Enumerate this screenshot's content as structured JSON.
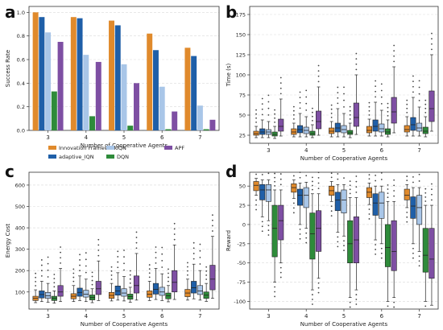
{
  "colors": {
    "Innovation Framework": "#e08a2c",
    "adaptive_IQN": "#1f5fa8",
    "IQN": "#a9c6e8",
    "DQN": "#2e8b3a",
    "APF": "#7e4fa3"
  },
  "chart_data": [
    {
      "panel": "a",
      "type": "bar",
      "xlabel": "Number of Cooperative Agents",
      "ylabel": "Success Rate",
      "ylim": [
        0,
        1.05
      ],
      "yticks": [
        "0.0",
        "0.2",
        "0.4",
        "0.6",
        "0.8",
        "1.0"
      ],
      "categories": [
        "3",
        "4",
        "5",
        "6",
        "7"
      ],
      "grid": true,
      "legend": "bottom",
      "series": [
        {
          "name": "Innovation Framework",
          "values": [
            1.0,
            0.96,
            0.93,
            0.82,
            0.7
          ]
        },
        {
          "name": "adaptive_IQN",
          "values": [
            0.96,
            0.95,
            0.89,
            0.68,
            0.63
          ]
        },
        {
          "name": "IQN",
          "values": [
            0.83,
            0.64,
            0.56,
            0.37,
            0.21
          ]
        },
        {
          "name": "DQN",
          "values": [
            0.33,
            0.12,
            0.04,
            0.01,
            0.01
          ]
        },
        {
          "name": "APF",
          "values": [
            0.75,
            0.58,
            0.4,
            0.16,
            0.09
          ]
        }
      ]
    },
    {
      "panel": "b",
      "type": "boxplot",
      "xlabel": "Number of Cooperative Agents",
      "ylabel": "Time (s)",
      "ylim": [
        15,
        185
      ],
      "yticks": [
        "25",
        "50",
        "75",
        "100",
        "125",
        "150",
        "175"
      ],
      "categories": [
        "3",
        "4",
        "5",
        "6",
        "7"
      ],
      "grid": true,
      "series": [
        {
          "name": "Innovation Framework",
          "boxes": [
            [
              22,
              25,
              27,
              30,
              36
            ],
            [
              23,
              26,
              29,
              33,
              40
            ],
            [
              23,
              27,
              30,
              34,
              42
            ],
            [
              24,
              28,
              31,
              36,
              45
            ],
            [
              24,
              29,
              32,
              37,
              48
            ]
          ]
        },
        {
          "name": "adaptive_IQN",
          "boxes": [
            [
              22,
              26,
              29,
              33,
              44
            ],
            [
              23,
              28,
              32,
              37,
              52
            ],
            [
              23,
              29,
              34,
              40,
              58
            ],
            [
              24,
              30,
              36,
              44,
              66
            ],
            [
              24,
              31,
              38,
              47,
              72
            ]
          ]
        },
        {
          "name": "IQN",
          "boxes": [
            [
              22,
              26,
              29,
              32,
              42
            ],
            [
              23,
              27,
              31,
              35,
              48
            ],
            [
              23,
              28,
              32,
              37,
              52
            ],
            [
              24,
              29,
              33,
              39,
              56
            ],
            [
              24,
              30,
              34,
              40,
              60
            ]
          ]
        },
        {
          "name": "DQN",
          "boxes": [
            [
              21,
              24,
              26,
              29,
              36
            ],
            [
              22,
              25,
              27,
              30,
              38
            ],
            [
              22,
              26,
              28,
              31,
              40
            ],
            [
              23,
              26,
              29,
              33,
              44
            ],
            [
              23,
              27,
              30,
              35,
              48
            ]
          ]
        },
        {
          "name": "APF",
          "boxes": [
            [
              24,
              30,
              36,
              45,
              70
            ],
            [
              25,
              33,
              42,
              55,
              85
            ],
            [
              26,
              36,
              47,
              65,
              100
            ],
            [
              28,
              40,
              54,
              72,
              110
            ],
            [
              30,
              42,
              58,
              80,
              125
            ]
          ]
        }
      ]
    },
    {
      "panel": "c",
      "type": "boxplot",
      "xlabel": "Number of Cooperative Agents",
      "ylabel": "Energy Cost",
      "ylim": [
        20,
        660
      ],
      "yticks": [
        "100",
        "200",
        "300",
        "400",
        "500",
        "600"
      ],
      "categories": [
        "3",
        "4",
        "5",
        "6",
        "7"
      ],
      "grid": true,
      "series": [
        {
          "name": "Innovation Framework",
          "boxes": [
            [
              50,
              60,
              70,
              80,
              110
            ],
            [
              55,
              68,
              80,
              92,
              130
            ],
            [
              58,
              70,
              84,
              98,
              140
            ],
            [
              60,
              75,
              90,
              105,
              150
            ],
            [
              62,
              78,
              95,
              112,
              160
            ]
          ]
        },
        {
          "name": "adaptive_IQN",
          "boxes": [
            [
              55,
              72,
              88,
              105,
              150
            ],
            [
              60,
              80,
              98,
              118,
              175
            ],
            [
              62,
              85,
              105,
              128,
              190
            ],
            [
              65,
              90,
              112,
              140,
              210
            ],
            [
              68,
              95,
              120,
              150,
              230
            ]
          ]
        },
        {
          "name": "IQN",
          "boxes": [
            [
              52,
              70,
              82,
              98,
              140
            ],
            [
              55,
              76,
              90,
              108,
              160
            ],
            [
              58,
              80,
              95,
              115,
              172
            ],
            [
              60,
              84,
              100,
              122,
              185
            ],
            [
              62,
              88,
              105,
              130,
              200
            ]
          ]
        },
        {
          "name": "DQN",
          "boxes": [
            [
              48,
              60,
              70,
              80,
              105
            ],
            [
              50,
              63,
              74,
              86,
              115
            ],
            [
              52,
              66,
              78,
              90,
              122
            ],
            [
              54,
              68,
              82,
              95,
              130
            ],
            [
              56,
              70,
              85,
              100,
              140
            ]
          ]
        },
        {
          "name": "APF",
          "boxes": [
            [
              55,
              80,
              100,
              130,
              210
            ],
            [
              60,
              88,
              115,
              150,
              245
            ],
            [
              62,
              95,
              130,
              175,
              280
            ],
            [
              65,
              100,
              145,
              200,
              320
            ],
            [
              70,
              110,
              160,
              225,
              360
            ]
          ]
        }
      ]
    },
    {
      "panel": "d",
      "type": "boxplot",
      "xlabel": "Number of Cooperative Agents",
      "ylabel": "Reward",
      "ylim": [
        -110,
        68
      ],
      "yticks": [
        "-100",
        "-75",
        "-50",
        "-25",
        "0",
        "25",
        "50"
      ],
      "categories": [
        "3",
        "4",
        "5",
        "6",
        "7"
      ],
      "grid": true,
      "series": [
        {
          "name": "Innovation Framework",
          "boxes": [
            [
              38,
              44,
              51,
              56,
              60
            ],
            [
              34,
              42,
              48,
              53,
              58
            ],
            [
              30,
              38,
              44,
              50,
              56
            ],
            [
              26,
              35,
              42,
              48,
              54
            ],
            [
              22,
              32,
              38,
              46,
              52
            ]
          ]
        },
        {
          "name": "adaptive_IQN",
          "boxes": [
            [
              10,
              32,
              45,
              52,
              58
            ],
            [
              0,
              25,
              38,
              46,
              54
            ],
            [
              -10,
              18,
              32,
              42,
              52
            ],
            [
              -20,
              12,
              28,
              40,
              50
            ],
            [
              -25,
              8,
              24,
              36,
              48
            ]
          ]
        },
        {
          "name": "IQN",
          "boxes": [
            [
              5,
              30,
              45,
              52,
              58
            ],
            [
              -5,
              22,
              38,
              48,
              55
            ],
            [
              -15,
              15,
              32,
              45,
              52
            ],
            [
              -25,
              8,
              28,
              42,
              50
            ],
            [
              -35,
              0,
              22,
              38,
              48
            ]
          ]
        },
        {
          "name": "DQN",
          "boxes": [
            [
              -75,
              -42,
              -5,
              25,
              45
            ],
            [
              -85,
              -45,
              -12,
              15,
              40
            ],
            [
              -95,
              -50,
              -25,
              5,
              35
            ],
            [
              -100,
              -55,
              -30,
              0,
              30
            ],
            [
              -100,
              -62,
              -40,
              -5,
              25
            ]
          ]
        },
        {
          "name": "APF",
          "boxes": [
            [
              -50,
              -20,
              5,
              25,
              45
            ],
            [
              -70,
              -35,
              -5,
              18,
              40
            ],
            [
              -85,
              -50,
              -20,
              10,
              35
            ],
            [
              -95,
              -60,
              -35,
              5,
              30
            ],
            [
              -105,
              -70,
              -45,
              -5,
              25
            ]
          ]
        }
      ]
    }
  ]
}
